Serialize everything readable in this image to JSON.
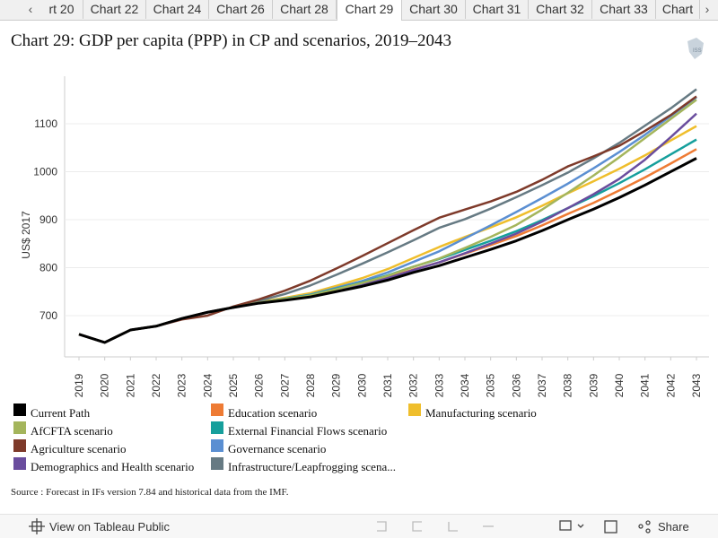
{
  "tabs": [
    "rt 20",
    "Chart 22",
    "Chart 24",
    "Chart 26",
    "Chart 28",
    "Chart 29",
    "Chart 30",
    "Chart 31",
    "Chart 32",
    "Chart 33",
    "Chart"
  ],
  "active_tab": 5,
  "chart_data": {
    "type": "line",
    "title": "Chart 29: GDP per capita (PPP) in CP and scenarios, 2019–2043",
    "y_label": "US$ 2017",
    "categories": [
      "2019",
      "2020",
      "2021",
      "2022",
      "2023",
      "2024",
      "2025",
      "2026",
      "2027",
      "2028",
      "2029",
      "2030",
      "2031",
      "2032",
      "2033",
      "2034",
      "2035",
      "2036",
      "2037",
      "2038",
      "2039",
      "2040",
      "2041",
      "2042",
      "2043"
    ],
    "ylim": [
      614,
      1199
    ],
    "yticks": [
      700,
      800,
      900,
      1000,
      1100
    ],
    "grid": true,
    "series": [
      {
        "name": "Current Path",
        "color": "#000000",
        "values": [
          661,
          644,
          670,
          678,
          694,
          707,
          717,
          726,
          732,
          739,
          750,
          761,
          774,
          790,
          804,
          821,
          838,
          856,
          877,
          900,
          922,
          946,
          972,
          1000,
          1028
        ]
      },
      {
        "name": "AfCFTA scenario",
        "color": "#a4b55c",
        "values": [
          661,
          644,
          670,
          678,
          694,
          707,
          717,
          727,
          734,
          742,
          755,
          768,
          783,
          802,
          819,
          841,
          864,
          889,
          921,
          956,
          992,
          1030,
          1070,
          1110,
          1150
        ]
      },
      {
        "name": "Agriculture scenario",
        "color": "#7e3a2a",
        "values": [
          661,
          644,
          670,
          678,
          692,
          700,
          719,
          734,
          752,
          773,
          798,
          824,
          851,
          878,
          904,
          921,
          938,
          958,
          983,
          1011,
          1032,
          1054,
          1085,
          1118,
          1157
        ]
      },
      {
        "name": "Demographics and Health scenario",
        "color": "#6a4d9e",
        "values": [
          661,
          644,
          670,
          678,
          694,
          707,
          717,
          726,
          733,
          740,
          752,
          764,
          778,
          795,
          811,
          830,
          850,
          871,
          896,
          924,
          953,
          985,
          1025,
          1072,
          1121
        ]
      },
      {
        "name": "Education scenario",
        "color": "#ee7b34",
        "values": [
          661,
          644,
          670,
          678,
          694,
          707,
          717,
          727,
          734,
          741,
          753,
          765,
          779,
          796,
          811,
          829,
          847,
          866,
          888,
          912,
          935,
          961,
          988,
          1017,
          1047
        ]
      },
      {
        "name": "External Financial Flows scenario",
        "color": "#169f9c",
        "values": [
          661,
          644,
          670,
          678,
          694,
          707,
          717,
          727,
          735,
          743,
          756,
          769,
          784,
          802,
          818,
          837,
          856,
          876,
          899,
          924,
          949,
          976,
          1005,
          1036,
          1067
        ]
      },
      {
        "name": "Governance scenario",
        "color": "#5b8fd2",
        "values": [
          661,
          644,
          670,
          678,
          694,
          707,
          717,
          727,
          735,
          744,
          758,
          772,
          790,
          812,
          834,
          861,
          888,
          916,
          945,
          975,
          1007,
          1041,
          1077,
          1116,
          1155
        ]
      },
      {
        "name": "Infrastructure/Leapfrogging scena...",
        "color": "#667a83",
        "values": [
          661,
          644,
          670,
          678,
          694,
          707,
          717,
          731,
          745,
          763,
          785,
          808,
          832,
          857,
          883,
          901,
          923,
          947,
          972,
          998,
          1028,
          1060,
          1096,
          1132,
          1172
        ]
      },
      {
        "name": "Manufacturing scenario",
        "color": "#efbe2c",
        "values": [
          661,
          644,
          670,
          678,
          694,
          707,
          717,
          728,
          737,
          747,
          762,
          778,
          797,
          820,
          843,
          864,
          884,
          905,
          929,
          955,
          980,
          1006,
          1034,
          1065,
          1095
        ]
      }
    ]
  },
  "source": "Source : Forecast in IFs version 7.84 and historical data from the IMF.",
  "toolbar": {
    "view": "View on Tableau Public",
    "share": "Share"
  }
}
